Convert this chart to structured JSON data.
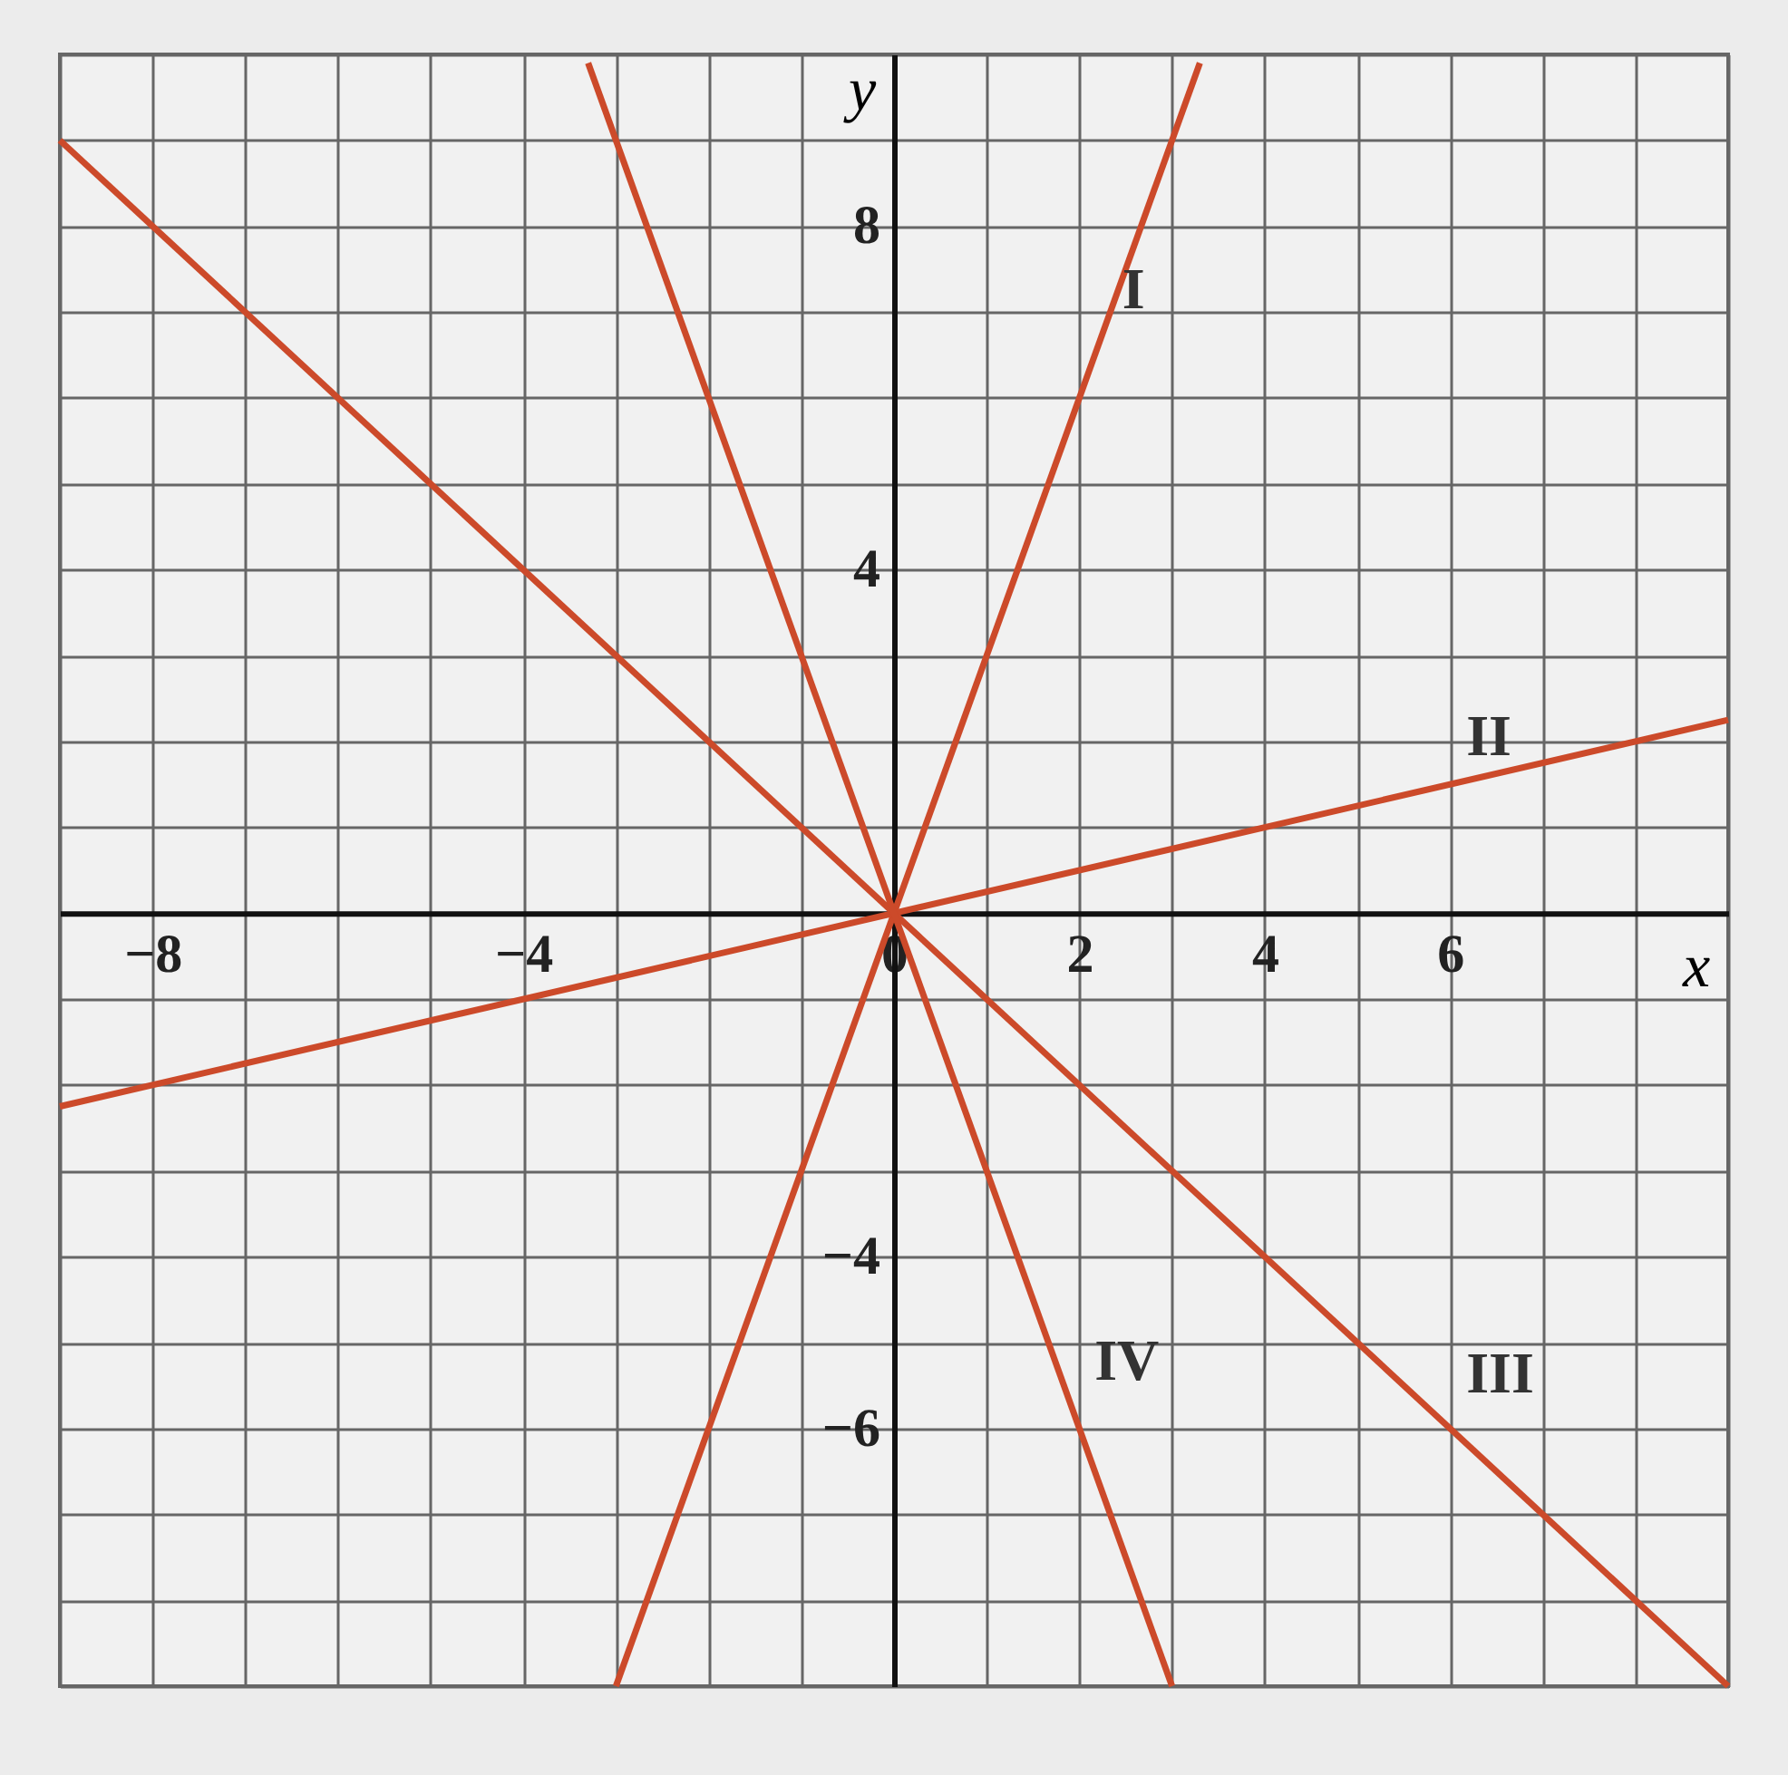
{
  "chart_data": {
    "type": "line",
    "xlabel": "x",
    "ylabel": "y",
    "xlim": [
      -9,
      9
    ],
    "ylim": [
      -9,
      10
    ],
    "grid": true,
    "xticks": [
      {
        "value": -9,
        "label": null
      },
      {
        "value": -8,
        "label": "−8"
      },
      {
        "value": -7,
        "label": null
      },
      {
        "value": -6,
        "label": null
      },
      {
        "value": -5,
        "label": null
      },
      {
        "value": -4,
        "label": "−4"
      },
      {
        "value": -3,
        "label": null
      },
      {
        "value": -2,
        "label": null
      },
      {
        "value": -1,
        "label": null
      },
      0,
      {
        "value": 1,
        "label": null
      },
      2,
      {
        "value": 3,
        "label": null
      },
      4,
      {
        "value": 5,
        "label": null
      },
      6,
      {
        "value": 7,
        "label": null
      },
      {
        "value": 8,
        "label": null
      },
      {
        "value": 9,
        "label": null
      }
    ],
    "yticks": [
      {
        "value": -9,
        "label": null
      },
      {
        "value": -8,
        "label": null
      },
      {
        "value": -7,
        "label": null
      },
      {
        "value": -6,
        "label": "−6"
      },
      {
        "value": -5,
        "label": null
      },
      {
        "value": -4,
        "label": "−4"
      },
      {
        "value": -3,
        "label": null
      },
      {
        "value": -2,
        "label": null
      },
      {
        "value": -1,
        "label": null
      },
      {
        "value": 0,
        "label": null
      },
      {
        "value": 1,
        "label": null
      },
      {
        "value": 2,
        "label": null
      },
      {
        "value": 3,
        "label": null
      },
      4,
      {
        "value": 5,
        "label": null
      },
      {
        "value": 6,
        "label": null
      },
      {
        "value": 7,
        "label": null
      },
      8,
      {
        "value": 9,
        "label": null
      },
      {
        "value": 10,
        "label": null
      }
    ],
    "series": [
      {
        "name": "I",
        "color": "#cc4a2a",
        "x": [
          -3,
          3.3
        ],
        "values": [
          -9,
          9.9
        ]
      },
      {
        "name": "II",
        "color": "#cc4a2a",
        "x": [
          -9,
          9
        ],
        "values": [
          -2.25,
          2.25
        ]
      },
      {
        "name": "III",
        "color": "#cc4a2a",
        "x": [
          -9,
          9
        ],
        "values": [
          9,
          -9
        ]
      },
      {
        "name": "IV",
        "color": "#cc4a2a",
        "x": [
          -3.3,
          3
        ],
        "values": [
          9.9,
          -9
        ]
      }
    ]
  }
}
